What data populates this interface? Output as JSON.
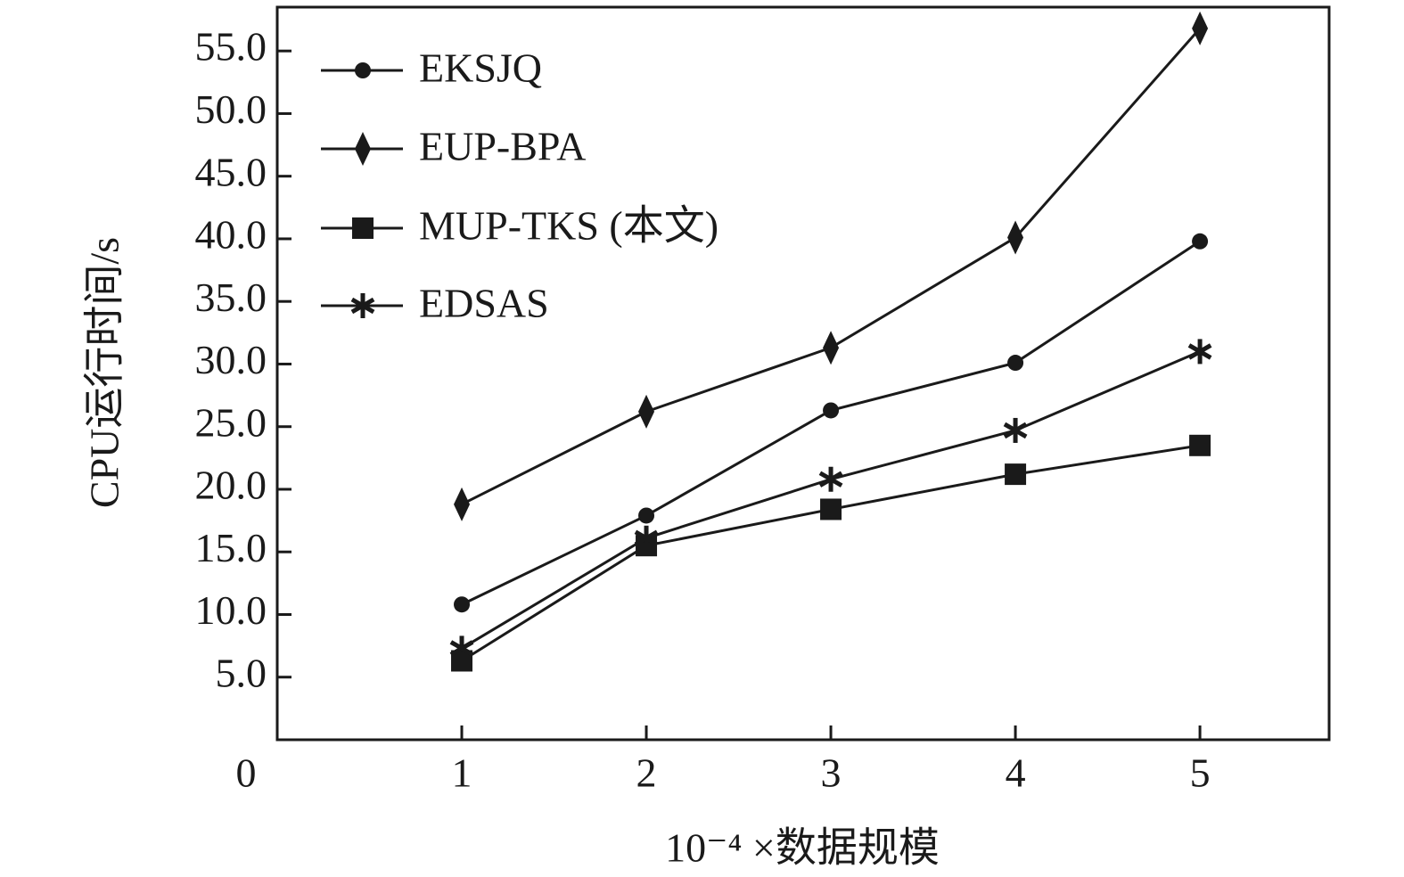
{
  "chart_data": {
    "type": "line",
    "title": "",
    "xlabel": "10⁻⁴ ×数据规模",
    "ylabel": "CPU运行时间/s",
    "origin_label": "0",
    "categories": [
      "1",
      "2",
      "3",
      "4",
      "5"
    ],
    "x": [
      1,
      2,
      3,
      4,
      5
    ],
    "xlim": [
      0,
      5.7
    ],
    "ylim": [
      0,
      58.5
    ],
    "yticks": [
      5.0,
      10.0,
      15.0,
      20.0,
      25.0,
      30.0,
      35.0,
      40.0,
      45.0,
      50.0,
      55.0
    ],
    "ytick_labels": [
      "5.0",
      "10.0",
      "15.0",
      "20.0",
      "25.0",
      "30.0",
      "35.0",
      "40.0",
      "45.0",
      "50.0",
      "55.0"
    ],
    "grid": false,
    "legend_position": "top-left",
    "series": [
      {
        "name": "EKSJQ",
        "marker": "circle",
        "color": "#1a1a1a",
        "values": [
          10.8,
          17.9,
          26.3,
          30.1,
          39.8
        ]
      },
      {
        "name": "EUP-BPA",
        "marker": "diamond",
        "color": "#1a1a1a",
        "values": [
          18.8,
          26.2,
          31.3,
          40.1,
          56.8
        ]
      },
      {
        "name": "MUP-TKS (本文)",
        "marker": "square",
        "color": "#1a1a1a",
        "values": [
          6.3,
          15.5,
          18.4,
          21.2,
          23.5
        ]
      },
      {
        "name": "EDSAS",
        "marker": "star",
        "color": "#1a1a1a",
        "values": [
          7.3,
          16.1,
          20.8,
          24.7,
          31.0
        ]
      }
    ]
  }
}
